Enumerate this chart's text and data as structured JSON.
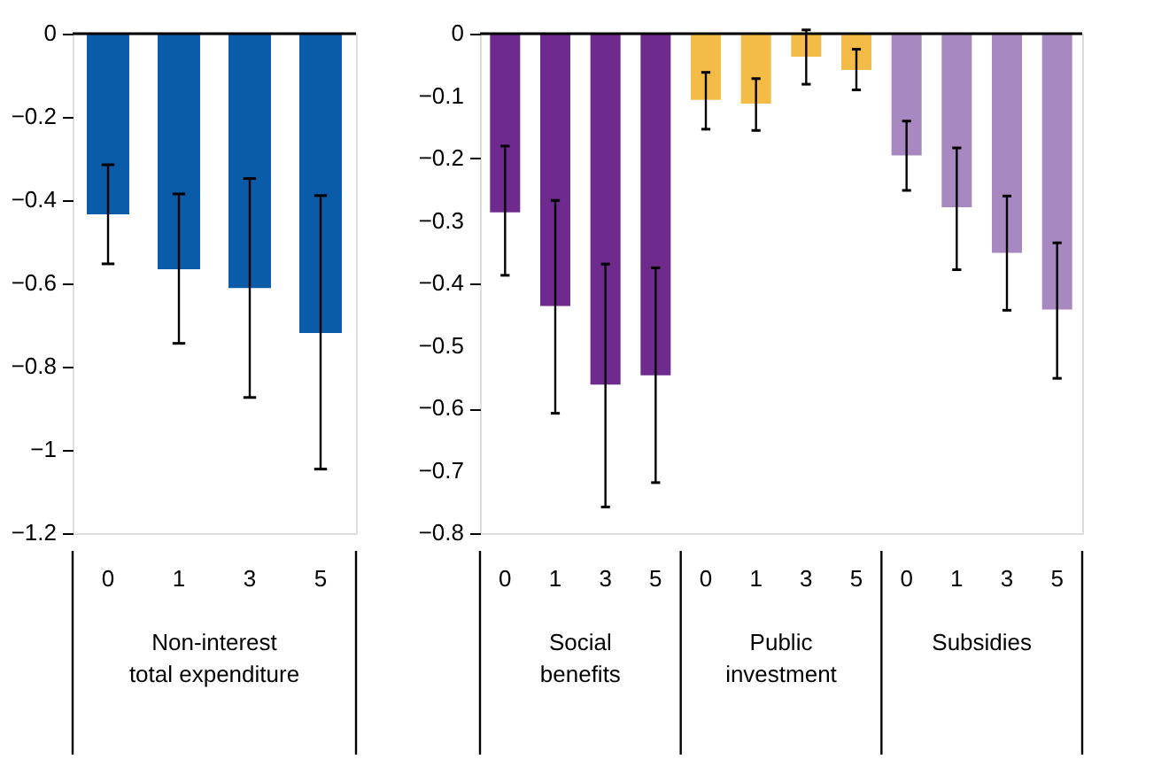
{
  "chart_data": [
    {
      "type": "bar",
      "categories": [
        "0",
        "1",
        "3",
        "5"
      ],
      "xlabel": "Non-interest total expenditure",
      "values": [
        -0.434,
        -0.566,
        -0.611,
        -0.719
      ],
      "errors": [
        [
          -0.553,
          -0.315
        ],
        [
          -0.744,
          -0.385
        ],
        [
          -0.874,
          -0.348
        ],
        [
          -1.046,
          -0.389
        ]
      ],
      "color": "#0b5ca8",
      "ylim": [
        -1.2,
        0
      ],
      "yticks": [
        {
          "value": -1.2,
          "label": "−1.2"
        },
        {
          "value": -1,
          "label": "−1"
        },
        {
          "value": -0.8,
          "label": "−0.8"
        },
        {
          "value": -0.6,
          "label": "−0.6"
        },
        {
          "value": -0.4,
          "label": "−0.4"
        },
        {
          "value": -0.2,
          "label": "−0.2"
        },
        0
      ],
      "ref_lines": [
        {
          "axis": "y",
          "value": 0,
          "color": "#000000"
        }
      ],
      "grid": false
    },
    {
      "type": "bar",
      "categories": [
        "0",
        "1",
        "3",
        "5",
        "0",
        "1",
        "3",
        "5",
        "0",
        "1",
        "3",
        "5"
      ],
      "annotations": [
        "Social benefits",
        "Public investment",
        "Subsidies"
      ],
      "values": [
        -0.286,
        -0.436,
        -0.562,
        -0.547,
        -0.106,
        -0.112,
        -0.037,
        -0.058,
        -0.195,
        -0.278,
        -0.351,
        -0.442
      ],
      "errors": [
        [
          -0.387,
          -0.18
        ],
        [
          -0.608,
          -0.267
        ],
        [
          -0.758,
          -0.369
        ],
        [
          -0.719,
          -0.375
        ],
        [
          -0.153,
          -0.062
        ],
        [
          -0.155,
          -0.072
        ],
        [
          -0.081,
          0.006
        ],
        [
          -0.09,
          -0.025
        ],
        [
          -0.251,
          -0.14
        ],
        [
          -0.378,
          -0.183
        ],
        [
          -0.443,
          -0.26
        ],
        [
          -0.552,
          -0.335
        ]
      ],
      "colors": [
        "#6e2a8d",
        "#6e2a8d",
        "#6e2a8d",
        "#6e2a8d",
        "#f3bc47",
        "#f3bc47",
        "#f3bc47",
        "#f3bc47",
        "#a788c0",
        "#a788c0",
        "#a788c0",
        "#a788c0"
      ],
      "ylim": [
        -0.8,
        0
      ],
      "yticks": [
        {
          "value": -0.8,
          "label": "−0.8"
        },
        {
          "value": -0.7,
          "label": "−0.7"
        },
        {
          "value": -0.6,
          "label": "−0.6"
        },
        {
          "value": -0.5,
          "label": "−0.5"
        },
        {
          "value": -0.4,
          "label": "−0.4"
        },
        {
          "value": -0.3,
          "label": "−0.3"
        },
        {
          "value": -0.2,
          "label": "−0.2"
        },
        {
          "value": -0.1,
          "label": "−0.1"
        },
        0
      ],
      "ref_lines": [
        {
          "axis": "y",
          "value": 0,
          "color": "#000000"
        }
      ],
      "grid": false
    }
  ]
}
